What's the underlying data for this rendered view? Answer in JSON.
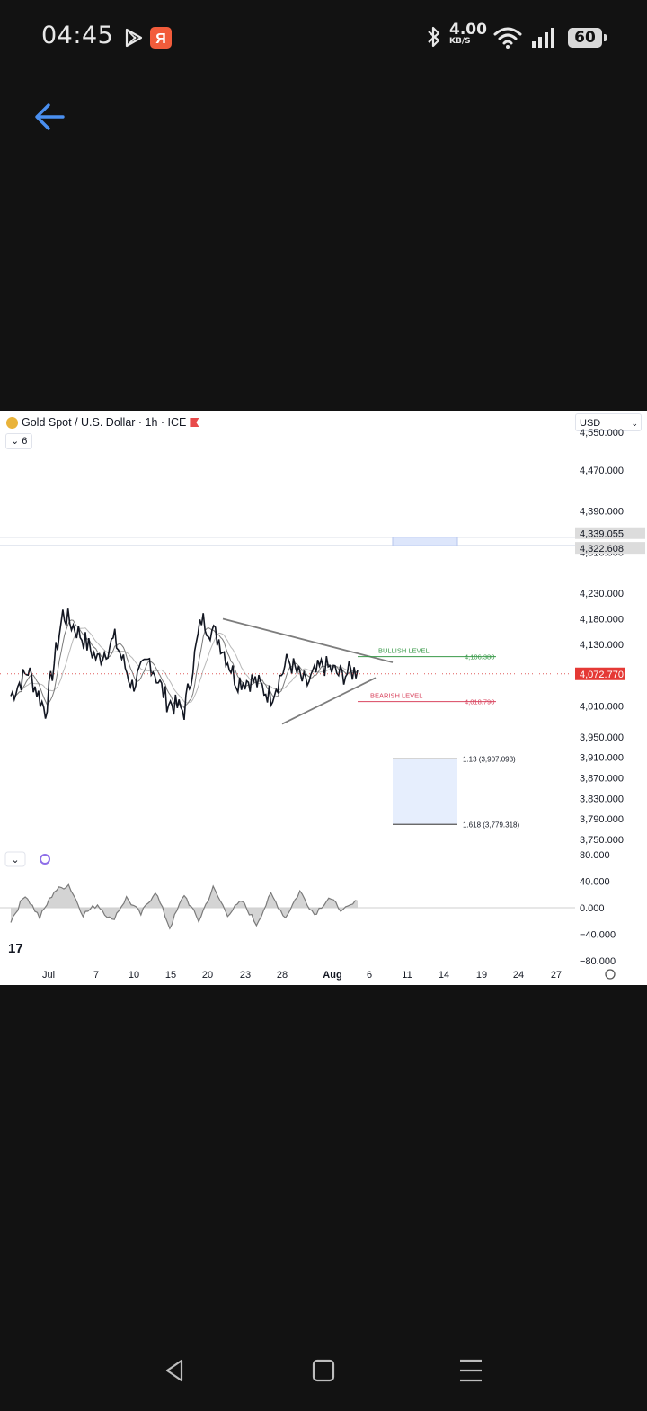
{
  "status_bar": {
    "time": "04:45",
    "speed_value": "4.00",
    "speed_unit": "KB/S",
    "battery": "60"
  },
  "chart_header": {
    "title": "Gold Spot / U.S. Dollar · 1h · ICE",
    "collapse_count": "6",
    "currency": "USD"
  },
  "chart_data": {
    "type": "line",
    "title": "Gold Spot / U.S. Dollar · 1h · ICE",
    "x_tick_labels": [
      "Jul",
      "7",
      "10",
      "15",
      "20",
      "23",
      "28",
      "Aug",
      "6",
      "11",
      "14",
      "19",
      "24",
      "27"
    ],
    "y_tick_labels": [
      "4,470.000",
      "4,390.000",
      "4,310.000",
      "4,230.000",
      "4,180.000",
      "4,130.000",
      "4,010.000",
      "3,950.000",
      "3,910.000",
      "3,870.000",
      "3,830.000",
      "3,790.000",
      "3,750.000"
    ],
    "ylim": [
      3750,
      4500
    ],
    "last_price": "4,072.770",
    "price_path": [
      [
        "Jul",
        4030
      ],
      [
        "3",
        4080
      ],
      [
        "5",
        4000
      ],
      [
        "7",
        4190
      ],
      [
        "8",
        4150
      ],
      [
        "10",
        4100
      ],
      [
        "12",
        4140
      ],
      [
        "14",
        4050
      ],
      [
        "16",
        4100
      ],
      [
        "18",
        4020
      ],
      [
        "20",
        4000
      ],
      [
        "22",
        4180
      ],
      [
        "23",
        4140
      ],
      [
        "25",
        4060
      ],
      [
        "27",
        4060
      ],
      [
        "28",
        4030
      ],
      [
        "29",
        4100
      ],
      [
        "30",
        4050
      ],
      [
        "Aug",
        4090
      ],
      [
        "2",
        4070
      ],
      [
        "3",
        4080
      ]
    ],
    "range_box_labels": [
      "4,339.055",
      "4,322.608"
    ],
    "annotations": [
      {
        "label": "BULLISH LEVEL",
        "value_label": "4,106.380",
        "value": 4106.38,
        "color": "#3a9a4a"
      },
      {
        "label": "BEARISH LEVEL",
        "value_label": "4,018.790",
        "value": 4018.79,
        "color": "#d9455f"
      }
    ],
    "fib_box": [
      {
        "label": "1.13 (3,907.093)",
        "value": 3907.093
      },
      {
        "label": "1.618 (3,779.318)",
        "value": 3779.318
      }
    ],
    "triangle": {
      "upper": [
        4180,
        4095
      ],
      "lower": [
        3975,
        4070
      ]
    },
    "oscillator": {
      "y_tick_labels": [
        "80.000",
        "40.000",
        "0.000",
        "−40.000",
        "−80.000"
      ],
      "values": [
        -20,
        20,
        -15,
        25,
        35,
        -10,
        5,
        -20,
        15,
        -10,
        25,
        -30,
        20,
        -20,
        30,
        -10,
        10,
        -25,
        20,
        -15,
        25,
        -10,
        15,
        -5,
        10
      ]
    }
  },
  "colors": {
    "background": "#121212",
    "chart_bg": "#ffffff",
    "price_line": "#131722",
    "bullish": "#3a9a4a",
    "bearish": "#d9455f",
    "accent": "#4a8ff0"
  }
}
